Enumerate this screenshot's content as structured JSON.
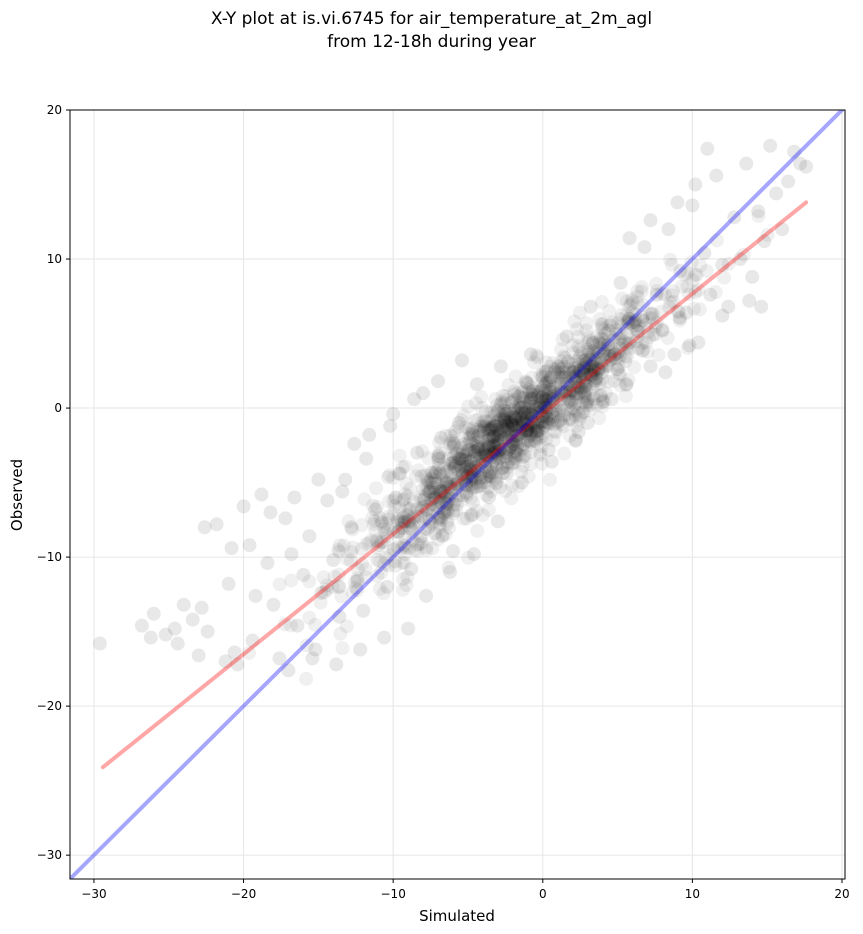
{
  "chart_data": {
    "type": "scatter",
    "title": "X-Y plot at is.vi.6745 for air_temperature_at_2m_agl",
    "subtitle": "from 12-18h during year",
    "xlabel": "Simulated",
    "ylabel": "Observed",
    "xlim": [
      -31.6,
      20.2
    ],
    "ylim": [
      -31.6,
      20
    ],
    "xticks": [
      -30,
      -20,
      -10,
      0,
      10,
      20
    ],
    "yticks": [
      -30,
      -20,
      -10,
      0,
      10,
      20
    ],
    "xtick_labels": [
      "−30",
      "−20",
      "−10",
      "0",
      "10",
      "20"
    ],
    "ytick_labels": [
      "−30",
      "−20",
      "−10",
      "0",
      "10",
      "20"
    ],
    "grid": true,
    "point_color": "#000000",
    "point_alpha": 0.06,
    "series": [
      {
        "kind": "points",
        "color": "#000000",
        "points": [
          [
            -29.6,
            -15.8
          ],
          [
            -26.8,
            -14.6
          ],
          [
            -26.0,
            -13.8
          ],
          [
            -25.2,
            -15.2
          ],
          [
            -24.6,
            -14.8
          ],
          [
            -24.0,
            -13.2
          ],
          [
            -23.4,
            -14.2
          ],
          [
            -22.8,
            -13.4
          ],
          [
            -22.4,
            -15.0
          ],
          [
            -22.6,
            -8.0
          ],
          [
            -21.8,
            -7.8
          ],
          [
            -21.0,
            -11.8
          ],
          [
            -20.6,
            -16.4
          ],
          [
            -20.4,
            -17.2
          ],
          [
            -20.0,
            -6.6
          ],
          [
            -19.6,
            -9.2
          ],
          [
            -19.2,
            -12.6
          ],
          [
            -18.8,
            -5.8
          ],
          [
            -18.4,
            -10.4
          ],
          [
            -18.0,
            -13.2
          ],
          [
            -17.6,
            -16.8
          ],
          [
            -17.2,
            -7.4
          ],
          [
            -16.8,
            -9.8
          ],
          [
            -16.4,
            -14.6
          ],
          [
            -16.0,
            -11.2
          ],
          [
            -15.6,
            -8.6
          ],
          [
            -15.2,
            -16.2
          ],
          [
            -14.8,
            -12.4
          ],
          [
            -14.4,
            -6.2
          ],
          [
            -14.0,
            -10.2
          ],
          [
            -13.6,
            -14.0
          ],
          [
            -13.2,
            -4.8
          ],
          [
            -12.8,
            -8.0
          ],
          [
            -12.4,
            -11.6
          ],
          [
            -12.0,
            -13.6
          ],
          [
            -12.6,
            -2.4
          ],
          [
            -11.6,
            -1.8
          ],
          [
            -11.2,
            -6.8
          ],
          [
            -10.8,
            -9.0
          ],
          [
            -10.4,
            -12.0
          ],
          [
            -10.0,
            -0.4
          ],
          [
            -9.6,
            -4.4
          ],
          [
            -9.2,
            -7.6
          ],
          [
            -8.8,
            -10.8
          ],
          [
            -8.4,
            -3.0
          ],
          [
            -8.0,
            1.0
          ],
          [
            -7.6,
            -5.6
          ],
          [
            -7.2,
            -8.4
          ],
          [
            -6.8,
            -2.0
          ],
          [
            -6.4,
            -6.4
          ],
          [
            -6.0,
            -9.6
          ],
          [
            -5.6,
            -1.0
          ],
          [
            -5.2,
            -4.8
          ],
          [
            -4.8,
            -7.2
          ],
          [
            -4.4,
            1.6
          ],
          [
            -4.0,
            -3.6
          ],
          [
            -3.6,
            -6.0
          ],
          [
            -3.2,
            -1.2
          ],
          [
            -2.8,
            2.8
          ],
          [
            -2.4,
            -4.4
          ],
          [
            -2.0,
            -2.4
          ],
          [
            -1.6,
            0.8
          ],
          [
            -1.2,
            -3.2
          ],
          [
            -0.8,
            3.6
          ],
          [
            -0.4,
            -1.6
          ],
          [
            0.0,
            0.4
          ],
          [
            0.4,
            -2.8
          ],
          [
            0.8,
            2.4
          ],
          [
            1.2,
            -0.8
          ],
          [
            1.6,
            4.8
          ],
          [
            2.0,
            1.2
          ],
          [
            2.4,
            -1.6
          ],
          [
            2.8,
            3.2
          ],
          [
            3.2,
            6.8
          ],
          [
            3.6,
            2.0
          ],
          [
            4.0,
            0.4
          ],
          [
            4.4,
            5.2
          ],
          [
            4.8,
            3.6
          ],
          [
            5.2,
            8.4
          ],
          [
            5.6,
            1.6
          ],
          [
            6.0,
            6.4
          ],
          [
            6.4,
            4.0
          ],
          [
            6.8,
            10.8
          ],
          [
            7.2,
            2.8
          ],
          [
            7.6,
            7.6
          ],
          [
            8.0,
            5.2
          ],
          [
            8.4,
            12.0
          ],
          [
            8.8,
            3.6
          ],
          [
            9.2,
            9.2
          ],
          [
            9.6,
            6.4
          ],
          [
            10.0,
            13.6
          ],
          [
            10.4,
            4.4
          ],
          [
            10.8,
            10.4
          ],
          [
            11.2,
            7.6
          ],
          [
            11.6,
            15.6
          ],
          [
            12.0,
            9.6
          ],
          [
            12.4,
            6.8
          ],
          [
            12.8,
            12.8
          ],
          [
            13.2,
            10.0
          ],
          [
            13.6,
            16.4
          ],
          [
            14.0,
            8.8
          ],
          [
            14.4,
            13.2
          ],
          [
            14.8,
            11.2
          ],
          [
            15.2,
            17.6
          ],
          [
            15.6,
            14.4
          ],
          [
            16.0,
            12.0
          ],
          [
            16.4,
            15.2
          ],
          [
            16.8,
            17.2
          ],
          [
            17.2,
            16.4
          ],
          [
            17.6,
            16.2
          ],
          [
            11.0,
            17.4
          ],
          [
            10.2,
            15.0
          ],
          [
            9.0,
            13.8
          ],
          [
            7.2,
            12.6
          ],
          [
            5.8,
            11.4
          ],
          [
            12.0,
            6.2
          ],
          [
            13.8,
            7.2
          ],
          [
            14.6,
            6.8
          ],
          [
            9.8,
            4.2
          ],
          [
            8.2,
            2.4
          ],
          [
            3.0,
            -1.0
          ],
          [
            4.6,
            0.6
          ],
          [
            2.2,
            -2.2
          ],
          [
            0.6,
            -3.6
          ],
          [
            -1.4,
            -5.0
          ],
          [
            -3.0,
            -7.6
          ],
          [
            -4.6,
            -9.8
          ],
          [
            -6.2,
            -11.0
          ],
          [
            -7.8,
            -12.6
          ],
          [
            -9.0,
            -14.8
          ],
          [
            -10.6,
            -15.4
          ],
          [
            -12.2,
            -16.2
          ],
          [
            -13.8,
            -17.2
          ],
          [
            -15.4,
            -16.8
          ],
          [
            -17.0,
            -17.6
          ],
          [
            -19.4,
            -15.6
          ],
          [
            -21.2,
            -17.0
          ],
          [
            -23.0,
            -16.6
          ],
          [
            -24.4,
            -15.8
          ],
          [
            -26.2,
            -15.4
          ],
          [
            -5.4,
            3.2
          ],
          [
            -7.0,
            1.8
          ],
          [
            -8.6,
            0.6
          ],
          [
            -10.2,
            -1.2
          ],
          [
            -11.8,
            -3.4
          ],
          [
            -13.4,
            -5.6
          ],
          [
            -15.0,
            -4.8
          ],
          [
            -16.6,
            -6.0
          ],
          [
            -18.2,
            -7.0
          ],
          [
            -20.8,
            -9.4
          ]
        ]
      },
      {
        "name": "",
        "kind": "line",
        "color": "#ff0000",
        "alpha": 0.35,
        "x": [
          -29.4,
          17.6
        ],
        "y": [
          -24.1,
          13.8
        ]
      },
      {
        "name": "",
        "kind": "line",
        "color": "#0000ff",
        "alpha": 0.35,
        "x": [
          -31.6,
          20.2
        ],
        "y": [
          -31.6,
          20.2
        ]
      }
    ]
  }
}
